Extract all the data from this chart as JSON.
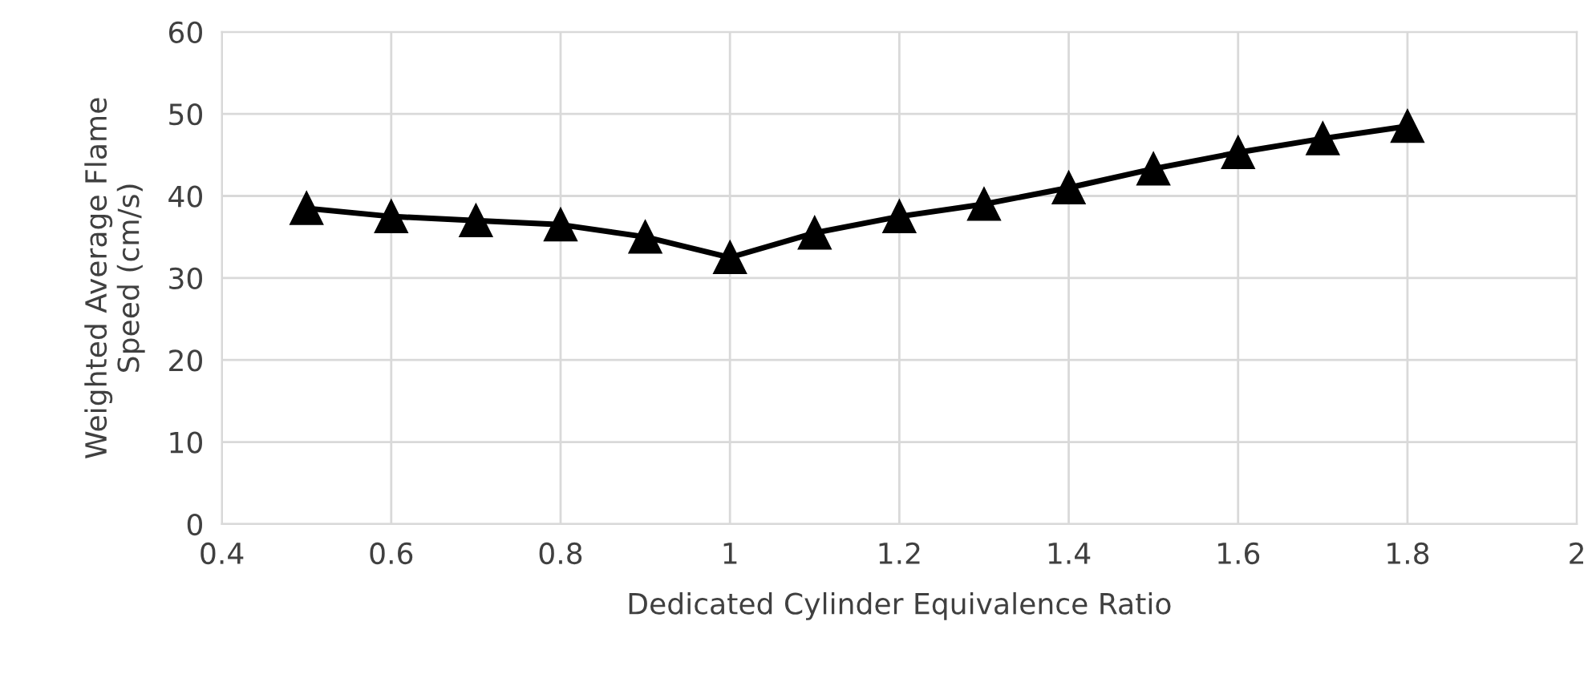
{
  "chart_data": {
    "type": "line",
    "xlabel": "Dedicated Cylinder Equivalence Ratio",
    "ylabel": "Weighted Average Flame\nSpeed (cm/s)",
    "x": [
      0.5,
      0.6,
      0.7,
      0.8,
      0.9,
      1.0,
      1.1,
      1.2,
      1.3,
      1.4,
      1.5,
      1.6,
      1.7,
      1.8
    ],
    "series": [
      {
        "color": "#000000",
        "values": [
          38.5,
          37.5,
          37,
          36.5,
          35,
          32.5,
          35.5,
          37.5,
          39,
          41,
          43.3,
          45.3,
          47,
          48.5
        ]
      }
    ],
    "xlim": [
      0.4,
      2
    ],
    "xticks": [
      0.4,
      0.6,
      0.8,
      1,
      1.2,
      1.4,
      1.6,
      1.8,
      2
    ],
    "ylim": [
      0,
      60
    ],
    "yticks": [
      0,
      10,
      20,
      30,
      40,
      50,
      60
    ],
    "grid": true,
    "marker": "triangle",
    "line_style": "solid",
    "legend": false
  }
}
